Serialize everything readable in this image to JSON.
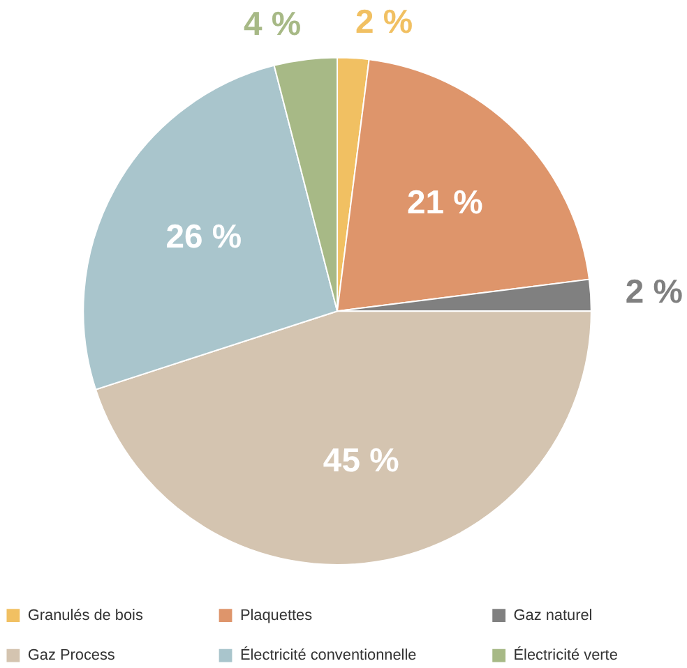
{
  "chart_data": {
    "type": "pie",
    "categories": [
      "Granulés de bois",
      "Plaquettes",
      "Gaz naturel",
      "Gaz Process",
      "Électricité conventionnelle",
      "Électricité verte"
    ],
    "values": [
      2,
      21,
      2,
      45,
      26,
      4
    ],
    "colors": [
      "#f1c062",
      "#de956b",
      "#808080",
      "#d4c4b0",
      "#a9c5cc",
      "#a7b986"
    ],
    "value_labels": [
      "2 %",
      "21 %",
      "2 %",
      "45 %",
      "26 %",
      "4 %"
    ],
    "legend": "bottom"
  }
}
